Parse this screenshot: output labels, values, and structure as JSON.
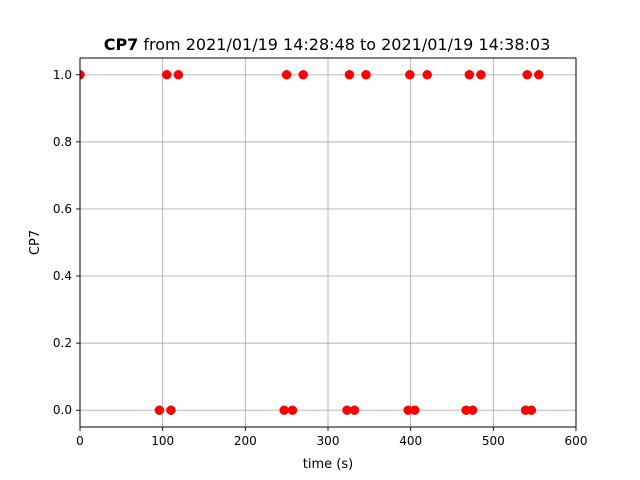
{
  "figure": {
    "background": "#ffffff"
  },
  "chart_data": {
    "type": "scatter",
    "title": {
      "bold_part": "CP7",
      "rest": " from 2021/01/19 14:28:48 to 2021/01/19 14:38:03"
    },
    "xlabel": "time (s)",
    "ylabel": "CP7",
    "xlim": [
      0,
      600
    ],
    "ylim": [
      -0.05,
      1.05
    ],
    "xticks": [
      0,
      100,
      200,
      300,
      400,
      500,
      600
    ],
    "xtick_labels": [
      "0",
      "100",
      "200",
      "300",
      "400",
      "500",
      "600"
    ],
    "yticks": [
      0.0,
      0.2,
      0.4,
      0.6,
      0.8,
      1.0
    ],
    "ytick_labels": [
      "0.0",
      "0.2",
      "0.4",
      "0.6",
      "0.8",
      "1.0"
    ],
    "grid": true,
    "legend": null,
    "series": [
      {
        "marker": "circle",
        "color": "#ff0000",
        "points": [
          {
            "x": 0,
            "y": 1
          },
          {
            "x": 96,
            "y": 0
          },
          {
            "x": 105,
            "y": 1
          },
          {
            "x": 110,
            "y": 0
          },
          {
            "x": 119,
            "y": 1
          },
          {
            "x": 247,
            "y": 0
          },
          {
            "x": 250,
            "y": 1
          },
          {
            "x": 257,
            "y": 0
          },
          {
            "x": 270,
            "y": 1
          },
          {
            "x": 323,
            "y": 0
          },
          {
            "x": 326,
            "y": 1
          },
          {
            "x": 332,
            "y": 0
          },
          {
            "x": 346,
            "y": 1
          },
          {
            "x": 397,
            "y": 0
          },
          {
            "x": 399,
            "y": 1
          },
          {
            "x": 405,
            "y": 0
          },
          {
            "x": 420,
            "y": 1
          },
          {
            "x": 467,
            "y": 0
          },
          {
            "x": 471,
            "y": 1
          },
          {
            "x": 475,
            "y": 0
          },
          {
            "x": 485,
            "y": 1
          },
          {
            "x": 539,
            "y": 0
          },
          {
            "x": 541,
            "y": 1
          },
          {
            "x": 546,
            "y": 0
          },
          {
            "x": 555,
            "y": 1
          }
        ]
      }
    ]
  }
}
